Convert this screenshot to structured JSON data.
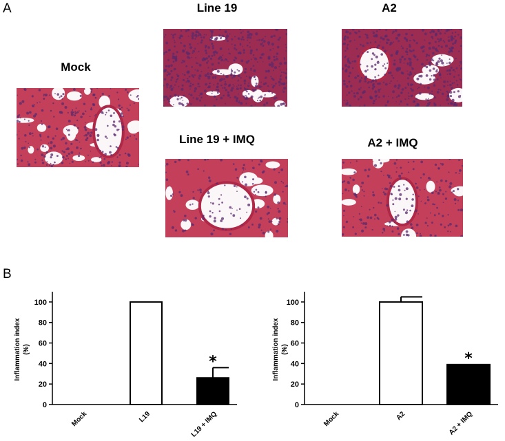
{
  "panel_a": {
    "letter": "A",
    "images": [
      {
        "label": "Mock",
        "name": "mock"
      },
      {
        "label": "Line 19",
        "name": "line19"
      },
      {
        "label": "A2",
        "name": "a2"
      },
      {
        "label": "Line 19 + IMQ",
        "name": "line19-imq"
      },
      {
        "label": "A2 + IMQ",
        "name": "a2-imq"
      }
    ],
    "colors": {
      "tissue": "#c4405a",
      "nuclei": "#5a2a6e",
      "airspace": "#fbf6f7",
      "dense": "#9c2c52"
    }
  },
  "panel_b": {
    "letter": "B"
  },
  "chart_data": [
    {
      "type": "bar",
      "categories": [
        "Mock",
        "L19",
        "L19 + IMQ"
      ],
      "values": [
        0,
        100,
        26
      ],
      "errors": [
        0,
        0,
        10
      ],
      "fills": [
        "#ffffff",
        "#ffffff",
        "#000000"
      ],
      "significance": [
        "",
        "",
        "*"
      ],
      "ylabel_line1": "Inflammation index",
      "ylabel_line2": "(%)",
      "ylim": [
        0,
        110
      ],
      "yticks": [
        0,
        20,
        40,
        60,
        80,
        100
      ]
    },
    {
      "type": "bar",
      "categories": [
        "Mock",
        "A2",
        "A2 + IMQ"
      ],
      "values": [
        0,
        100,
        39
      ],
      "errors": [
        0,
        5,
        0
      ],
      "fills": [
        "#ffffff",
        "#ffffff",
        "#000000"
      ],
      "significance": [
        "",
        "",
        "*"
      ],
      "ylabel_line1": "Inflammation index",
      "ylabel_line2": "(%)",
      "ylim": [
        0,
        110
      ],
      "yticks": [
        0,
        20,
        40,
        60,
        80,
        100
      ]
    }
  ]
}
